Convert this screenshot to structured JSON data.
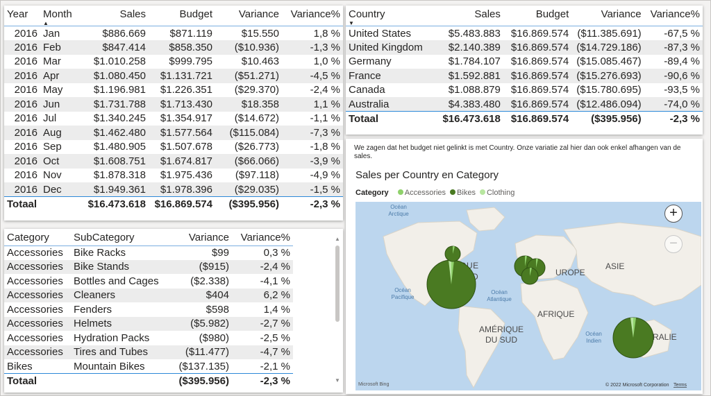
{
  "monthly_table": {
    "headers": [
      "Year",
      "Month",
      "Sales",
      "Budget",
      "Variance",
      "Variance%"
    ],
    "rows": [
      [
        "2016",
        "Jan",
        "$886.669",
        "$871.119",
        "$15.550",
        "1,8 %"
      ],
      [
        "2016",
        "Feb",
        "$847.414",
        "$858.350",
        "($10.936)",
        "-1,3 %"
      ],
      [
        "2016",
        "Mar",
        "$1.010.258",
        "$999.795",
        "$10.463",
        "1,0 %"
      ],
      [
        "2016",
        "Apr",
        "$1.080.450",
        "$1.131.721",
        "($51.271)",
        "-4,5 %"
      ],
      [
        "2016",
        "May",
        "$1.196.981",
        "$1.226.351",
        "($29.370)",
        "-2,4 %"
      ],
      [
        "2016",
        "Jun",
        "$1.731.788",
        "$1.713.430",
        "$18.358",
        "1,1 %"
      ],
      [
        "2016",
        "Jul",
        "$1.340.245",
        "$1.354.917",
        "($14.672)",
        "-1,1 %"
      ],
      [
        "2016",
        "Aug",
        "$1.462.480",
        "$1.577.564",
        "($115.084)",
        "-7,3 %"
      ],
      [
        "2016",
        "Sep",
        "$1.480.905",
        "$1.507.678",
        "($26.773)",
        "-1,8 %"
      ],
      [
        "2016",
        "Oct",
        "$1.608.751",
        "$1.674.817",
        "($66.066)",
        "-3,9 %"
      ],
      [
        "2016",
        "Nov",
        "$1.878.318",
        "$1.975.436",
        "($97.118)",
        "-4,9 %"
      ],
      [
        "2016",
        "Dec",
        "$1.949.361",
        "$1.978.396",
        "($29.035)",
        "-1,5 %"
      ]
    ],
    "total": [
      "Totaal",
      "",
      "$16.473.618",
      "$16.869.574",
      "($395.956)",
      "-2,3 %"
    ]
  },
  "country_table": {
    "headers": [
      "Country",
      "Sales",
      "Budget",
      "Variance",
      "Variance%"
    ],
    "rows": [
      [
        "United States",
        "$5.483.883",
        "$16.869.574",
        "($11.385.691)",
        "-67,5 %"
      ],
      [
        "United Kingdom",
        "$2.140.389",
        "$16.869.574",
        "($14.729.186)",
        "-87,3 %"
      ],
      [
        "Germany",
        "$1.784.107",
        "$16.869.574",
        "($15.085.467)",
        "-89,4 %"
      ],
      [
        "France",
        "$1.592.881",
        "$16.869.574",
        "($15.276.693)",
        "-90,6 %"
      ],
      [
        "Canada",
        "$1.088.879",
        "$16.869.574",
        "($15.780.695)",
        "-93,5 %"
      ],
      [
        "Australia",
        "$4.383.480",
        "$16.869.574",
        "($12.486.094)",
        "-74,0 %"
      ]
    ],
    "total": [
      "Totaal",
      "$16.473.618",
      "$16.869.574",
      "($395.956)",
      "-2,3 %"
    ]
  },
  "category_table": {
    "headers": [
      "Category",
      "SubCategory",
      "Variance",
      "Variance%"
    ],
    "rows": [
      [
        "Accessories",
        "Bike Racks",
        "$99",
        "0,3 %"
      ],
      [
        "Accessories",
        "Bike Stands",
        "($915)",
        "-2,4 %"
      ],
      [
        "Accessories",
        "Bottles and Cages",
        "($2.338)",
        "-4,1 %"
      ],
      [
        "Accessories",
        "Cleaners",
        "$404",
        "6,2 %"
      ],
      [
        "Accessories",
        "Fenders",
        "$598",
        "1,4 %"
      ],
      [
        "Accessories",
        "Helmets",
        "($5.982)",
        "-2,7 %"
      ],
      [
        "Accessories",
        "Hydration Packs",
        "($980)",
        "-2,5 %"
      ],
      [
        "Accessories",
        "Tires and Tubes",
        "($11.477)",
        "-4,7 %"
      ],
      [
        "Bikes",
        "Mountain Bikes",
        "($137.135)",
        "-2,1 %"
      ]
    ],
    "total": [
      "Totaal",
      "",
      "($395.956)",
      "-2,3 %"
    ]
  },
  "note_text": "We zagen dat het budget niet gelinkt is met Country. Onze variatie zal hier dan ook enkel afhangen van de sales.",
  "map_visual": {
    "title": "Sales per Country en Category",
    "legend_title": "Category",
    "legend_items": [
      {
        "label": "Accessories",
        "color": "#8fd16b"
      },
      {
        "label": "Bikes",
        "color": "#4a7a22"
      },
      {
        "label": "Clothing",
        "color": "#b8e6a0"
      }
    ],
    "labels": {
      "ocean_arctic": "Océan Arctique",
      "amerique_nord": "IQUE RD",
      "europe": "UROPE",
      "asie": "ASIE",
      "ocean_pacific": "Océan Pacifique",
      "ocean_atlantic": "Océan Atlantique",
      "afrique": "AFRIQUE",
      "amerique_sud": "AMÉRIQUE DU SUD",
      "ocean_indian": "Océan Indien",
      "australie": "RALIE"
    },
    "attribution": "© 2022 Microsoft Corporation",
    "terms": "Terms",
    "bing": "Microsoft Bing"
  }
}
